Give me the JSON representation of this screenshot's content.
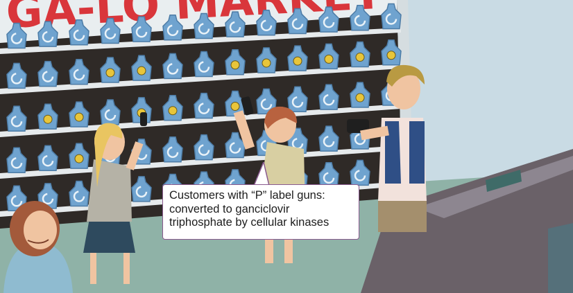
{
  "scene": {
    "store_sign": "GA-LO MARKET",
    "shelf_label_g": "G",
    "shelf_label_p": "P",
    "colors": {
      "wall": "#c9dbe4",
      "sign_board": "#e9eef0",
      "sign_text": "#d9363b",
      "shelf_back": "#2f2a27",
      "shelf_rail": "#e6eaec",
      "bottle": "#6fa3cf",
      "bottle_dark": "#4d7ca6",
      "p_label": "#e8c53a",
      "floor": "#8fb2a7",
      "counter": "#6a6168"
    }
  },
  "caption": {
    "text": "Customers with “P” label guns: converted to ganciclovir triphosphate by cellular kinases"
  }
}
